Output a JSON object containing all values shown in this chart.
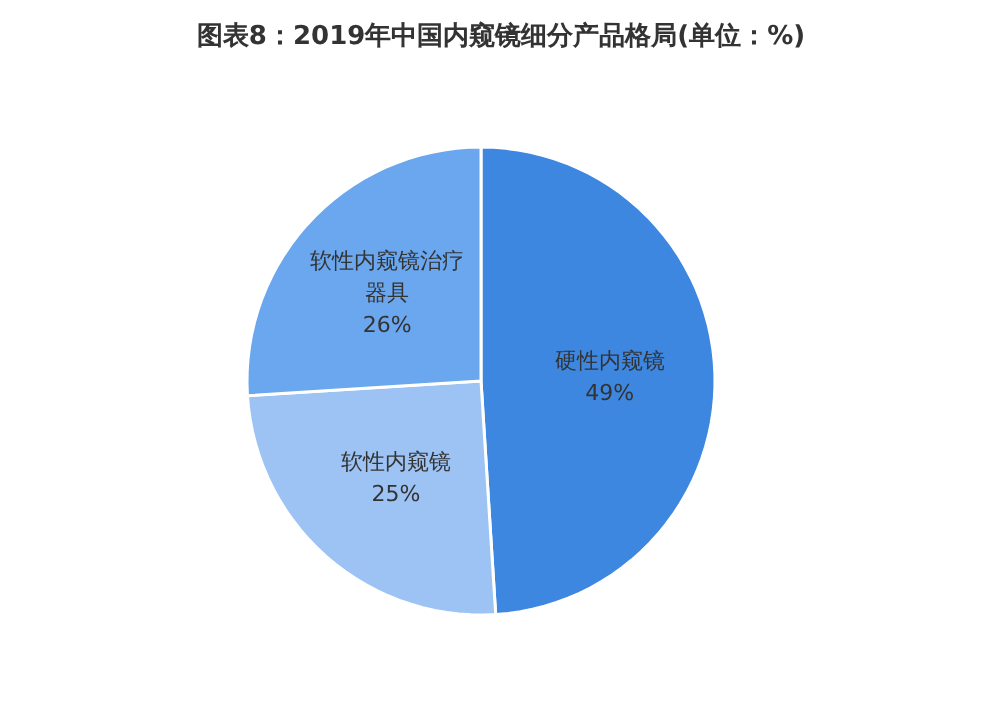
{
  "chart_data": {
    "type": "pie",
    "title": "图表8：2019年中国内窥镜细分产品格局(单位：%)",
    "categories": [
      "硬性内窥镜",
      "软性内窥镜",
      "软性内窥镜治疗器具"
    ],
    "values": [
      49,
      25,
      26
    ],
    "colors": [
      "#3d87e0",
      "#9cc3f3",
      "#6aa7ee"
    ],
    "value_labels": [
      "49%",
      "25%",
      "26%"
    ]
  }
}
